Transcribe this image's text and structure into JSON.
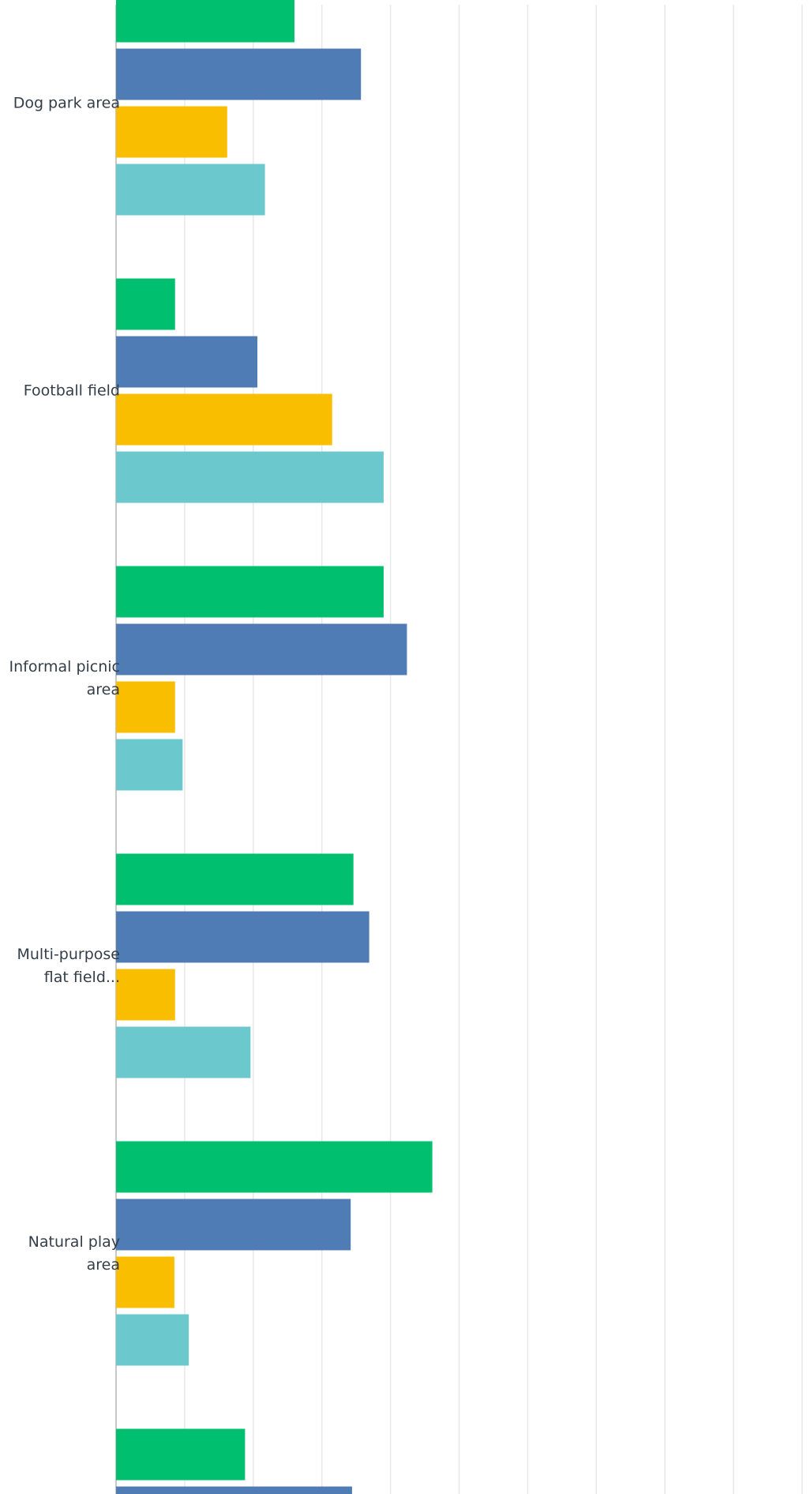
{
  "chart_data": {
    "type": "bar",
    "orientation": "horizontal",
    "categories": [
      "Dog park area",
      "Football field",
      "Informal picnic area",
      "Multi-purpose flat field...",
      "Natural play area",
      null
    ],
    "series": [
      {
        "color": "#00bf6f",
        "values": [
          26,
          8.6,
          39,
          34.6,
          46.1,
          18.8
        ]
      },
      {
        "color": "#507cb6",
        "values": [
          35.7,
          20.6,
          42.4,
          36.9,
          34.2,
          34.4
        ]
      },
      {
        "color": "#f9be00",
        "values": [
          16.2,
          31.5,
          8.6,
          8.6,
          8.5,
          null
        ]
      },
      {
        "color": "#6bc8cd",
        "values": [
          21.7,
          39,
          9.7,
          19.6,
          10.6,
          null
        ]
      }
    ],
    "xlim": [
      0,
      100
    ],
    "xticks": [
      0,
      10,
      20,
      30,
      40,
      50,
      60,
      70,
      80,
      90,
      100
    ],
    "grid": true
  }
}
